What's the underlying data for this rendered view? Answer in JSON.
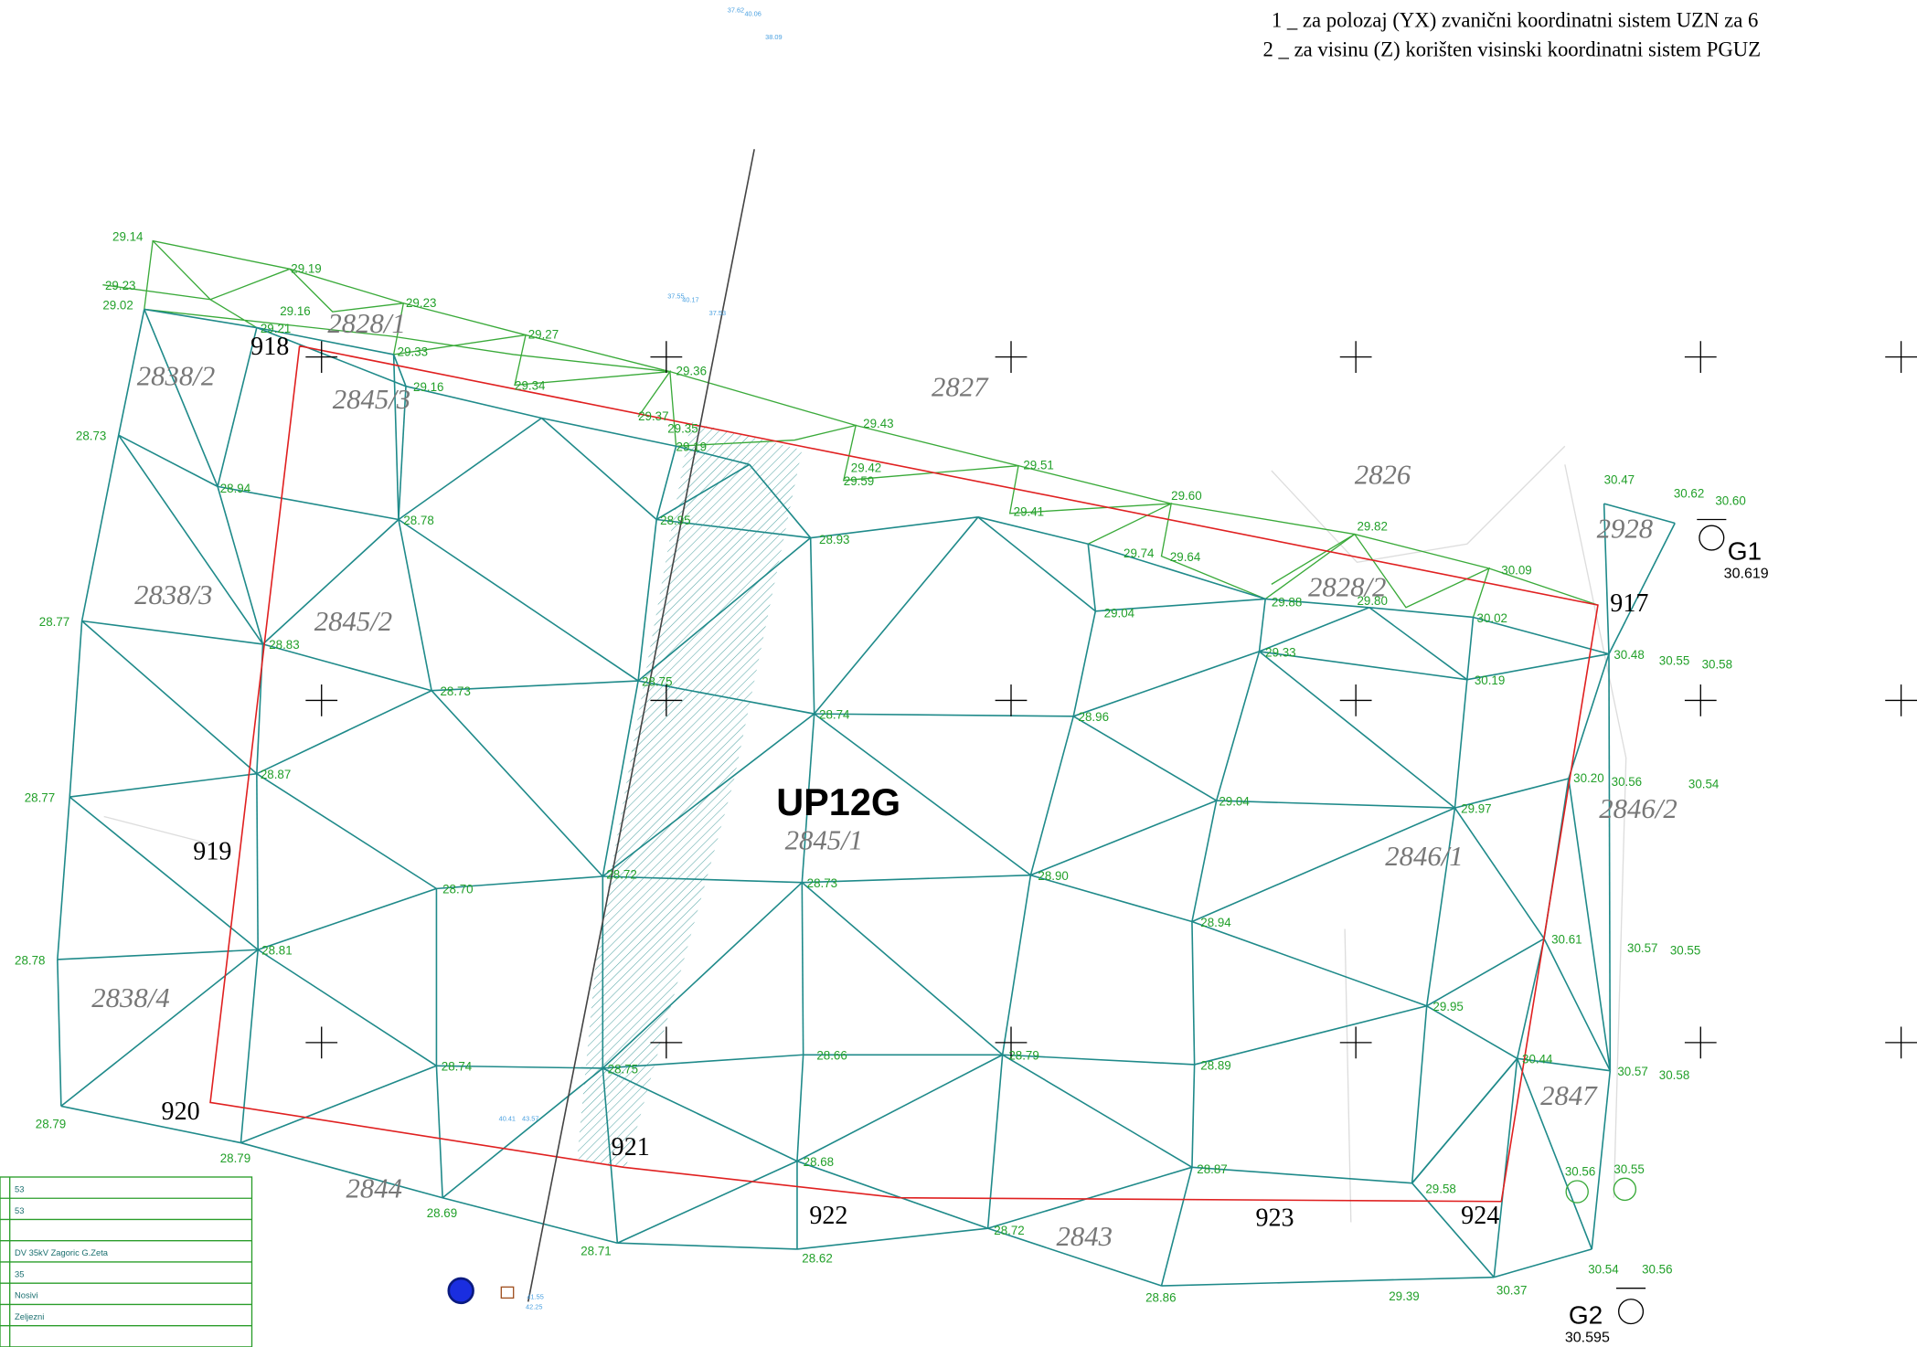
{
  "header": {
    "notes": [
      "1 _ za polozaj (YX)  zvanični koordinatni    sistem UZN za 6",
      "2 _ za visinu (Z) korišten visinski koordinatni    sistem PGUZ"
    ]
  },
  "label": "UP12G",
  "parcels": [
    "2828/1",
    "2838/2",
    "2845/3",
    "2827",
    "2826",
    "2928",
    "2828/2",
    "2838/3",
    "2845/2",
    "2845/1",
    "2846/1",
    "2846/2",
    "2838/4",
    "2847",
    "2844",
    "2843"
  ],
  "points": [
    "918",
    "917",
    "919",
    "920",
    "921",
    "922",
    "923",
    "924"
  ],
  "benchmarks": [
    {
      "name": "G1",
      "height": "30.619"
    },
    {
      "name": "G2",
      "height": "30.595"
    }
  ],
  "elevations": [
    "29.14",
    "29.19",
    "29.23",
    "29.02",
    "29.23",
    "29.16",
    "29.21",
    "29.33",
    "29.27",
    "29.16",
    "29.34",
    "29.36",
    "29.37",
    "29.35",
    "29.43",
    "29.19",
    "29.42",
    "29.59",
    "29.51",
    "28.73",
    "28.94",
    "28.78",
    "28.95",
    "28.93",
    "29.41",
    "29.60",
    "29.82",
    "30.47",
    "30.62",
    "30.60",
    "29.74",
    "29.64",
    "29.04",
    "29.88",
    "29.80",
    "30.09",
    "30.02",
    "28.77",
    "28.83",
    "29.33",
    "30.48",
    "30.55",
    "30.58",
    "28.75",
    "28.73",
    "28.74",
    "28.96",
    "30.19",
    "28.87",
    "28.77",
    "29.04",
    "29.97",
    "30.20",
    "30.56",
    "30.54",
    "28.72",
    "28.73",
    "28.90",
    "28.70",
    "28.94",
    "30.61",
    "30.57",
    "30.55",
    "28.81",
    "28.78",
    "29.95",
    "28.66",
    "28.79",
    "30.44",
    "28.74",
    "28.75",
    "28.89",
    "30.57",
    "30.58",
    "28.79",
    "28.79",
    "28.68",
    "28.87",
    "30.56",
    "30.55",
    "29.58",
    "28.69",
    "28.72",
    "28.71",
    "28.62",
    "30.54",
    "30.56",
    "30.37",
    "29.39",
    "28.86"
  ],
  "small_labels": [
    "37.62",
    "40.06",
    "38.09",
    "37.55",
    "40.17",
    "37.53",
    "40.41",
    "43.57",
    "41.55",
    "42.25"
  ],
  "table": {
    "rows": [
      "53",
      "53",
      "DV 35kV Zagoric G.Zeta",
      "35",
      "Nosivi",
      "Zeljezni"
    ]
  }
}
